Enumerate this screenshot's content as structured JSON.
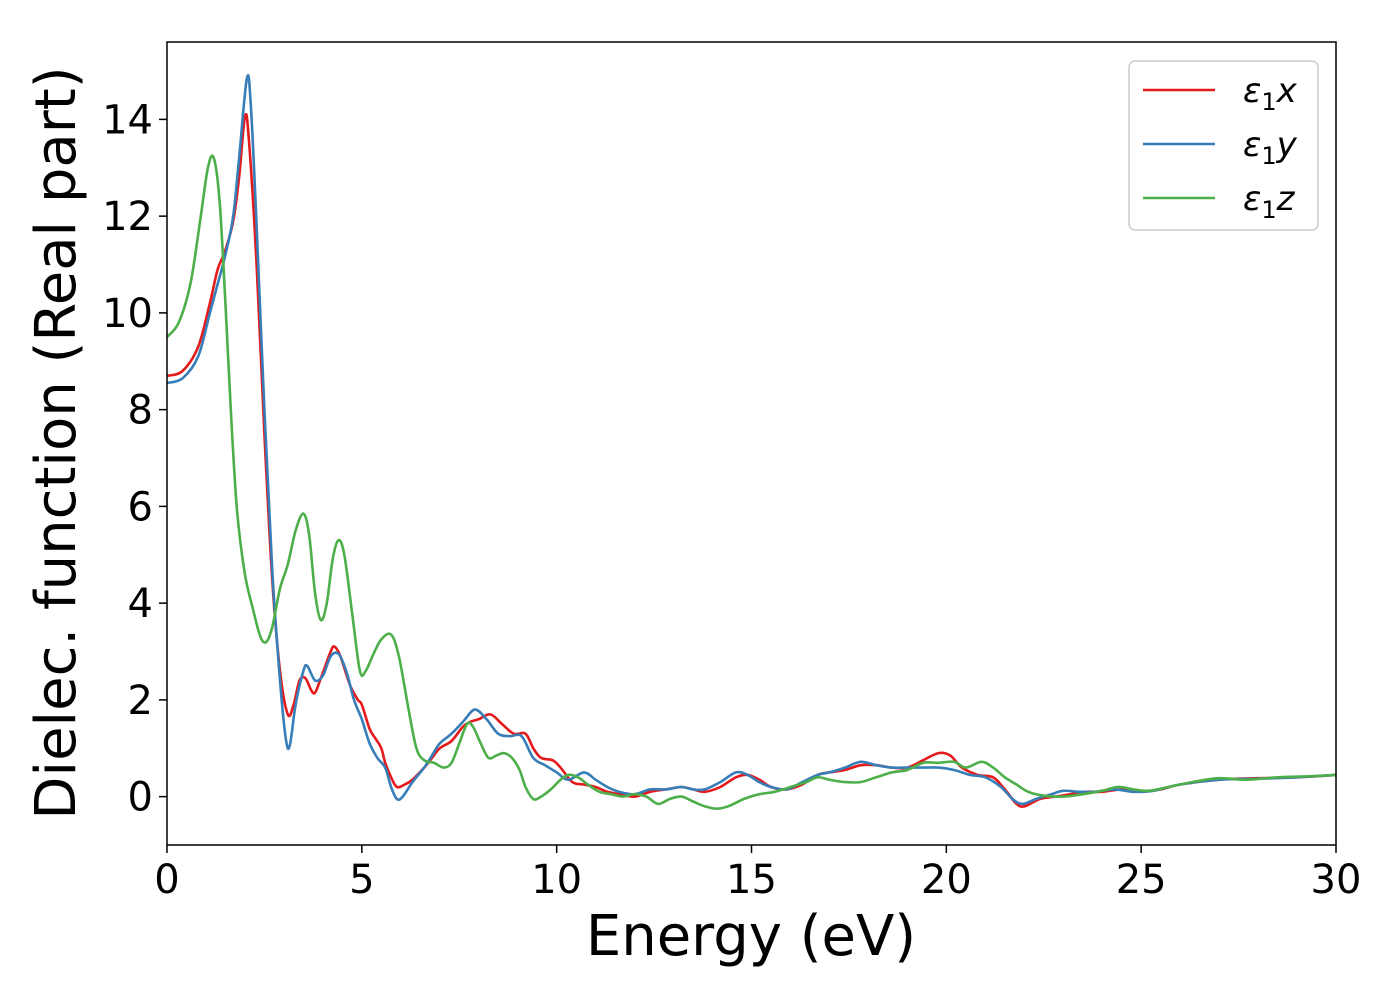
{
  "chart_data": {
    "type": "line",
    "title": "",
    "xlabel": "Energy (eV)",
    "ylabel": "Dielec. function (Real part)",
    "xlim": [
      0,
      30
    ],
    "ylim": [
      -1,
      15.6
    ],
    "x_ticks": [
      0,
      5,
      10,
      15,
      20,
      25,
      30
    ],
    "y_ticks": [
      0,
      2,
      4,
      6,
      8,
      10,
      12,
      14
    ],
    "grid": false,
    "legend_position": "top-right",
    "series": [
      {
        "name": "ε1x",
        "legend": {
          "symbol": "ε",
          "sub": "1",
          "var": "x"
        },
        "color": "#e41a1c",
        "points": [
          [
            0,
            8.7
          ],
          [
            0.4,
            8.8
          ],
          [
            0.8,
            9.3
          ],
          [
            1.1,
            10.2
          ],
          [
            1.3,
            10.9
          ],
          [
            1.5,
            11.3
          ],
          [
            1.7,
            11.9
          ],
          [
            1.85,
            12.8
          ],
          [
            2.0,
            14.05
          ],
          [
            2.1,
            13.6
          ],
          [
            2.3,
            11.0
          ],
          [
            2.5,
            7.5
          ],
          [
            2.7,
            4.5
          ],
          [
            2.9,
            2.6
          ],
          [
            3.1,
            1.7
          ],
          [
            3.25,
            1.9
          ],
          [
            3.4,
            2.4
          ],
          [
            3.55,
            2.45
          ],
          [
            3.7,
            2.2
          ],
          [
            3.8,
            2.15
          ],
          [
            3.95,
            2.45
          ],
          [
            4.2,
            3.0
          ],
          [
            4.3,
            3.1
          ],
          [
            4.45,
            2.9
          ],
          [
            4.7,
            2.3
          ],
          [
            4.9,
            2.0
          ],
          [
            5.0,
            1.9
          ],
          [
            5.2,
            1.4
          ],
          [
            5.35,
            1.2
          ],
          [
            5.5,
            1.0
          ],
          [
            5.6,
            0.7
          ],
          [
            5.75,
            0.4
          ],
          [
            5.9,
            0.2
          ],
          [
            6.1,
            0.25
          ],
          [
            6.3,
            0.35
          ],
          [
            6.6,
            0.6
          ],
          [
            6.8,
            0.8
          ],
          [
            7.0,
            1.0
          ],
          [
            7.3,
            1.15
          ],
          [
            7.6,
            1.45
          ],
          [
            7.8,
            1.55
          ],
          [
            8.0,
            1.6
          ],
          [
            8.3,
            1.7
          ],
          [
            8.6,
            1.5
          ],
          [
            8.9,
            1.3
          ],
          [
            9.2,
            1.3
          ],
          [
            9.4,
            1.0
          ],
          [
            9.6,
            0.8
          ],
          [
            9.9,
            0.75
          ],
          [
            10.1,
            0.6
          ],
          [
            10.4,
            0.3
          ],
          [
            10.7,
            0.25
          ],
          [
            11.0,
            0.2
          ],
          [
            11.3,
            0.1
          ],
          [
            11.6,
            0.05
          ],
          [
            12.0,
            0.0
          ],
          [
            12.4,
            0.1
          ],
          [
            12.8,
            0.15
          ],
          [
            13.2,
            0.2
          ],
          [
            13.5,
            0.15
          ],
          [
            13.8,
            0.1
          ],
          [
            14.2,
            0.2
          ],
          [
            14.6,
            0.4
          ],
          [
            14.9,
            0.45
          ],
          [
            15.2,
            0.35
          ],
          [
            15.5,
            0.2
          ],
          [
            15.9,
            0.15
          ],
          [
            16.3,
            0.25
          ],
          [
            16.7,
            0.45
          ],
          [
            17.0,
            0.5
          ],
          [
            17.4,
            0.55
          ],
          [
            17.8,
            0.65
          ],
          [
            18.2,
            0.65
          ],
          [
            18.6,
            0.6
          ],
          [
            19.0,
            0.6
          ],
          [
            19.4,
            0.75
          ],
          [
            19.8,
            0.9
          ],
          [
            20.1,
            0.85
          ],
          [
            20.4,
            0.6
          ],
          [
            20.8,
            0.45
          ],
          [
            21.2,
            0.4
          ],
          [
            21.5,
            0.15
          ],
          [
            21.8,
            -0.15
          ],
          [
            22.0,
            -0.2
          ],
          [
            22.4,
            -0.05
          ],
          [
            22.8,
            0.0
          ],
          [
            23.2,
            0.05
          ],
          [
            23.6,
            0.1
          ],
          [
            24.0,
            0.1
          ],
          [
            24.5,
            0.15
          ],
          [
            25.0,
            0.1
          ],
          [
            25.5,
            0.15
          ],
          [
            26.0,
            0.25
          ],
          [
            27.0,
            0.35
          ],
          [
            28.0,
            0.38
          ],
          [
            29.0,
            0.4
          ],
          [
            30.0,
            0.45
          ]
        ]
      },
      {
        "name": "ε1y",
        "legend": {
          "symbol": "ε",
          "sub": "1",
          "var": "y"
        },
        "color": "#377eb8",
        "points": [
          [
            0,
            8.55
          ],
          [
            0.4,
            8.65
          ],
          [
            0.8,
            9.1
          ],
          [
            1.1,
            10.0
          ],
          [
            1.3,
            10.6
          ],
          [
            1.5,
            11.2
          ],
          [
            1.7,
            12.0
          ],
          [
            1.85,
            13.2
          ],
          [
            2.05,
            14.85
          ],
          [
            2.15,
            14.3
          ],
          [
            2.3,
            11.8
          ],
          [
            2.5,
            8.0
          ],
          [
            2.7,
            4.7
          ],
          [
            2.9,
            2.4
          ],
          [
            3.05,
            1.2
          ],
          [
            3.15,
            1.05
          ],
          [
            3.3,
            1.9
          ],
          [
            3.5,
            2.6
          ],
          [
            3.6,
            2.7
          ],
          [
            3.8,
            2.4
          ],
          [
            4.0,
            2.5
          ],
          [
            4.2,
            2.9
          ],
          [
            4.4,
            2.95
          ],
          [
            4.6,
            2.6
          ],
          [
            4.8,
            2.0
          ],
          [
            5.0,
            1.6
          ],
          [
            5.2,
            1.1
          ],
          [
            5.4,
            0.8
          ],
          [
            5.6,
            0.6
          ],
          [
            5.75,
            0.2
          ],
          [
            5.9,
            -0.05
          ],
          [
            6.05,
            0.0
          ],
          [
            6.3,
            0.3
          ],
          [
            6.6,
            0.6
          ],
          [
            6.8,
            0.85
          ],
          [
            7.0,
            1.1
          ],
          [
            7.3,
            1.3
          ],
          [
            7.6,
            1.55
          ],
          [
            7.9,
            1.8
          ],
          [
            8.2,
            1.6
          ],
          [
            8.5,
            1.3
          ],
          [
            8.8,
            1.25
          ],
          [
            9.1,
            1.25
          ],
          [
            9.4,
            0.8
          ],
          [
            9.7,
            0.65
          ],
          [
            10.0,
            0.5
          ],
          [
            10.3,
            0.35
          ],
          [
            10.7,
            0.5
          ],
          [
            11.0,
            0.35
          ],
          [
            11.3,
            0.2
          ],
          [
            11.6,
            0.1
          ],
          [
            12.0,
            0.05
          ],
          [
            12.4,
            0.15
          ],
          [
            12.8,
            0.15
          ],
          [
            13.2,
            0.2
          ],
          [
            13.5,
            0.15
          ],
          [
            13.8,
            0.15
          ],
          [
            14.2,
            0.3
          ],
          [
            14.6,
            0.5
          ],
          [
            14.9,
            0.45
          ],
          [
            15.2,
            0.3
          ],
          [
            15.5,
            0.2
          ],
          [
            15.9,
            0.15
          ],
          [
            16.3,
            0.3
          ],
          [
            16.7,
            0.45
          ],
          [
            17.0,
            0.5
          ],
          [
            17.4,
            0.6
          ],
          [
            17.8,
            0.72
          ],
          [
            18.2,
            0.65
          ],
          [
            18.6,
            0.6
          ],
          [
            19.0,
            0.6
          ],
          [
            19.4,
            0.6
          ],
          [
            19.8,
            0.6
          ],
          [
            20.2,
            0.55
          ],
          [
            20.6,
            0.45
          ],
          [
            21.0,
            0.4
          ],
          [
            21.4,
            0.2
          ],
          [
            21.7,
            -0.05
          ],
          [
            21.95,
            -0.15
          ],
          [
            22.3,
            -0.05
          ],
          [
            22.7,
            0.05
          ],
          [
            23.0,
            0.12
          ],
          [
            23.4,
            0.1
          ],
          [
            23.8,
            0.1
          ],
          [
            24.3,
            0.15
          ],
          [
            24.8,
            0.1
          ],
          [
            25.3,
            0.12
          ],
          [
            26.0,
            0.25
          ],
          [
            27.0,
            0.35
          ],
          [
            28.0,
            0.37
          ],
          [
            29.0,
            0.4
          ],
          [
            30.0,
            0.45
          ]
        ]
      },
      {
        "name": "ε1z",
        "legend": {
          "symbol": "ε",
          "sub": "1",
          "var": "z"
        },
        "color": "#4daf4a",
        "points": [
          [
            0,
            9.5
          ],
          [
            0.3,
            9.8
          ],
          [
            0.6,
            10.6
          ],
          [
            0.85,
            11.9
          ],
          [
            1.05,
            13.0
          ],
          [
            1.2,
            13.2
          ],
          [
            1.35,
            12.3
          ],
          [
            1.5,
            10.2
          ],
          [
            1.65,
            7.8
          ],
          [
            1.8,
            5.9
          ],
          [
            2.0,
            4.6
          ],
          [
            2.2,
            3.9
          ],
          [
            2.4,
            3.3
          ],
          [
            2.55,
            3.2
          ],
          [
            2.7,
            3.5
          ],
          [
            2.9,
            4.3
          ],
          [
            3.1,
            4.8
          ],
          [
            3.3,
            5.5
          ],
          [
            3.5,
            5.85
          ],
          [
            3.65,
            5.4
          ],
          [
            3.8,
            4.2
          ],
          [
            3.95,
            3.65
          ],
          [
            4.1,
            4.0
          ],
          [
            4.25,
            4.9
          ],
          [
            4.4,
            5.3
          ],
          [
            4.55,
            5.0
          ],
          [
            4.75,
            3.8
          ],
          [
            4.95,
            2.6
          ],
          [
            5.1,
            2.6
          ],
          [
            5.3,
            2.95
          ],
          [
            5.5,
            3.25
          ],
          [
            5.75,
            3.35
          ],
          [
            5.95,
            2.9
          ],
          [
            6.2,
            1.8
          ],
          [
            6.4,
            1.0
          ],
          [
            6.6,
            0.75
          ],
          [
            6.85,
            0.7
          ],
          [
            7.1,
            0.6
          ],
          [
            7.3,
            0.7
          ],
          [
            7.5,
            1.1
          ],
          [
            7.7,
            1.5
          ],
          [
            7.85,
            1.45
          ],
          [
            8.05,
            1.1
          ],
          [
            8.25,
            0.8
          ],
          [
            8.45,
            0.85
          ],
          [
            8.65,
            0.9
          ],
          [
            8.85,
            0.8
          ],
          [
            9.05,
            0.55
          ],
          [
            9.2,
            0.2
          ],
          [
            9.4,
            -0.05
          ],
          [
            9.6,
            0.0
          ],
          [
            9.85,
            0.15
          ],
          [
            10.1,
            0.35
          ],
          [
            10.3,
            0.45
          ],
          [
            10.55,
            0.4
          ],
          [
            10.8,
            0.25
          ],
          [
            11.1,
            0.1
          ],
          [
            11.4,
            0.05
          ],
          [
            11.7,
            0.0
          ],
          [
            12.0,
            0.05
          ],
          [
            12.3,
            0.0
          ],
          [
            12.6,
            -0.15
          ],
          [
            12.9,
            -0.05
          ],
          [
            13.2,
            0.0
          ],
          [
            13.5,
            -0.1
          ],
          [
            13.8,
            -0.2
          ],
          [
            14.1,
            -0.25
          ],
          [
            14.4,
            -0.2
          ],
          [
            14.8,
            -0.05
          ],
          [
            15.2,
            0.05
          ],
          [
            15.6,
            0.1
          ],
          [
            16.0,
            0.2
          ],
          [
            16.4,
            0.3
          ],
          [
            16.7,
            0.4
          ],
          [
            17.0,
            0.35
          ],
          [
            17.4,
            0.3
          ],
          [
            17.8,
            0.3
          ],
          [
            18.2,
            0.4
          ],
          [
            18.6,
            0.5
          ],
          [
            19.0,
            0.55
          ],
          [
            19.4,
            0.7
          ],
          [
            19.8,
            0.7
          ],
          [
            20.2,
            0.72
          ],
          [
            20.5,
            0.6
          ],
          [
            20.9,
            0.72
          ],
          [
            21.2,
            0.6
          ],
          [
            21.5,
            0.4
          ],
          [
            21.8,
            0.25
          ],
          [
            22.1,
            0.1
          ],
          [
            22.5,
            0.02
          ],
          [
            23.0,
            0.0
          ],
          [
            23.5,
            0.05
          ],
          [
            24.0,
            0.12
          ],
          [
            24.4,
            0.2
          ],
          [
            24.8,
            0.15
          ],
          [
            25.2,
            0.12
          ],
          [
            25.7,
            0.2
          ],
          [
            26.3,
            0.3
          ],
          [
            27.0,
            0.38
          ],
          [
            27.7,
            0.35
          ],
          [
            28.5,
            0.4
          ],
          [
            29.3,
            0.42
          ],
          [
            30.0,
            0.45
          ]
        ]
      }
    ]
  }
}
